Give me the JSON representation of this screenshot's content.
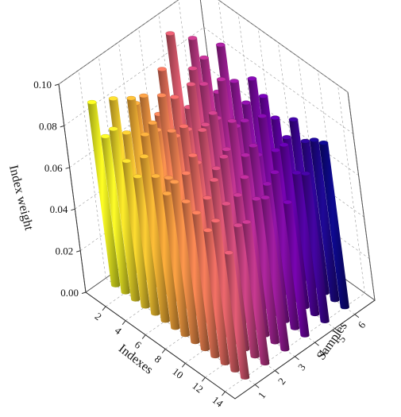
{
  "chart_data": {
    "type": "bar3d",
    "title": "",
    "zlabel": "Index weight",
    "xlabel": "Indexes",
    "ylabel": "Samples",
    "zlim": [
      0.0,
      0.1
    ],
    "z_ticks": [
      "0.00",
      "0.02",
      "0.04",
      "0.06",
      "0.08",
      "0.10"
    ],
    "x_ticks": [
      "2",
      "4",
      "6",
      "8",
      "10",
      "12",
      "14"
    ],
    "y_ticks": [
      "1",
      "2",
      "3",
      "4",
      "5",
      "6"
    ],
    "indexes": [
      1,
      2,
      3,
      4,
      5,
      6,
      7,
      8,
      9,
      10,
      11,
      12,
      13,
      14
    ],
    "samples": [
      1,
      2,
      3,
      4,
      5,
      6
    ],
    "values": [
      [
        0.088,
        0.083,
        0.074,
        0.062,
        0.094,
        0.085
      ],
      [
        0.075,
        0.07,
        0.081,
        0.087,
        0.062,
        0.079
      ],
      [
        0.082,
        0.09,
        0.068,
        0.077,
        0.084,
        0.066
      ],
      [
        0.07,
        0.076,
        0.088,
        0.065,
        0.08,
        0.092
      ],
      [
        0.066,
        0.085,
        0.072,
        0.09,
        0.067,
        0.078
      ],
      [
        0.079,
        0.062,
        0.08,
        0.074,
        0.089,
        0.071
      ],
      [
        0.073,
        0.088,
        0.066,
        0.083,
        0.07,
        0.086
      ],
      [
        0.068,
        0.071,
        0.085,
        0.069,
        0.076,
        0.081
      ],
      [
        0.077,
        0.083,
        0.07,
        0.086,
        0.063,
        0.074
      ],
      [
        0.071,
        0.066,
        0.079,
        0.073,
        0.085,
        0.068
      ],
      [
        0.069,
        0.078,
        0.064,
        0.081,
        0.072,
        0.08
      ],
      [
        0.064,
        0.07,
        0.076,
        0.066,
        0.078,
        0.073
      ],
      [
        0.072,
        0.063,
        0.069,
        0.075,
        0.068,
        0.077
      ],
      [
        0.06,
        0.068,
        0.073,
        0.064,
        0.071,
        0.079
      ]
    ],
    "colormap": "plasma",
    "colormap_stops": [
      "#0d0887",
      "#6a00a8",
      "#b12a90",
      "#e16462",
      "#fca636",
      "#f0f921"
    ],
    "grid": true
  }
}
